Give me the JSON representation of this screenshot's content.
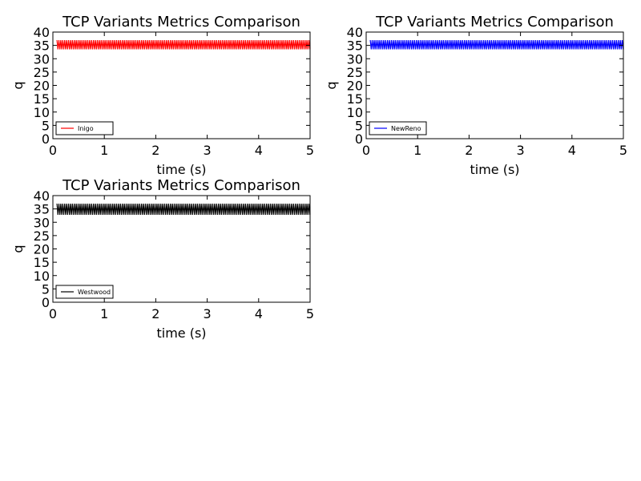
{
  "chart_data": [
    {
      "type": "line",
      "title": "TCP Variants Metrics Comparison",
      "xlabel": "time (s)",
      "ylabel": "q",
      "xlim": [
        0,
        5
      ],
      "ylim": [
        0,
        40
      ],
      "x_ticks": [
        "0",
        "1",
        "2",
        "3",
        "4",
        "5"
      ],
      "y_ticks": [
        "0",
        "5",
        "10",
        "15",
        "20",
        "25",
        "30",
        "35",
        "40"
      ],
      "legend_position": "lower-left",
      "series": [
        {
          "name": "Inigo",
          "color": "#ff0000",
          "x_start": 0.08,
          "x_end": 5.0,
          "y_min": 33.5,
          "y_max": 37.0,
          "pattern": "dense oscillation"
        }
      ]
    },
    {
      "type": "line",
      "title": "TCP Variants Metrics Comparison",
      "xlabel": "time (s)",
      "ylabel": "q",
      "xlim": [
        0,
        5
      ],
      "ylim": [
        0,
        40
      ],
      "x_ticks": [
        "0",
        "1",
        "2",
        "3",
        "4",
        "5"
      ],
      "y_ticks": [
        "0",
        "5",
        "10",
        "15",
        "20",
        "25",
        "30",
        "35",
        "40"
      ],
      "legend_position": "lower-left",
      "series": [
        {
          "name": "NewReno",
          "color": "#0000ff",
          "x_start": 0.08,
          "x_end": 5.0,
          "y_min": 33.5,
          "y_max": 37.0,
          "pattern": "dense oscillation"
        }
      ]
    },
    {
      "type": "line",
      "title": "TCP Variants Metrics Comparison",
      "xlabel": "time (s)",
      "ylabel": "q",
      "xlim": [
        0,
        5
      ],
      "ylim": [
        0,
        40
      ],
      "x_ticks": [
        "0",
        "1",
        "2",
        "3",
        "4",
        "5"
      ],
      "y_ticks": [
        "0",
        "5",
        "10",
        "15",
        "20",
        "25",
        "30",
        "35",
        "40"
      ],
      "legend_position": "lower-left",
      "series": [
        {
          "name": "Westwood",
          "color": "#000000",
          "x_start": 0.08,
          "x_end": 5.0,
          "y_min": 32.8,
          "y_max": 37.0,
          "pattern": "dense oscillation"
        }
      ]
    }
  ]
}
